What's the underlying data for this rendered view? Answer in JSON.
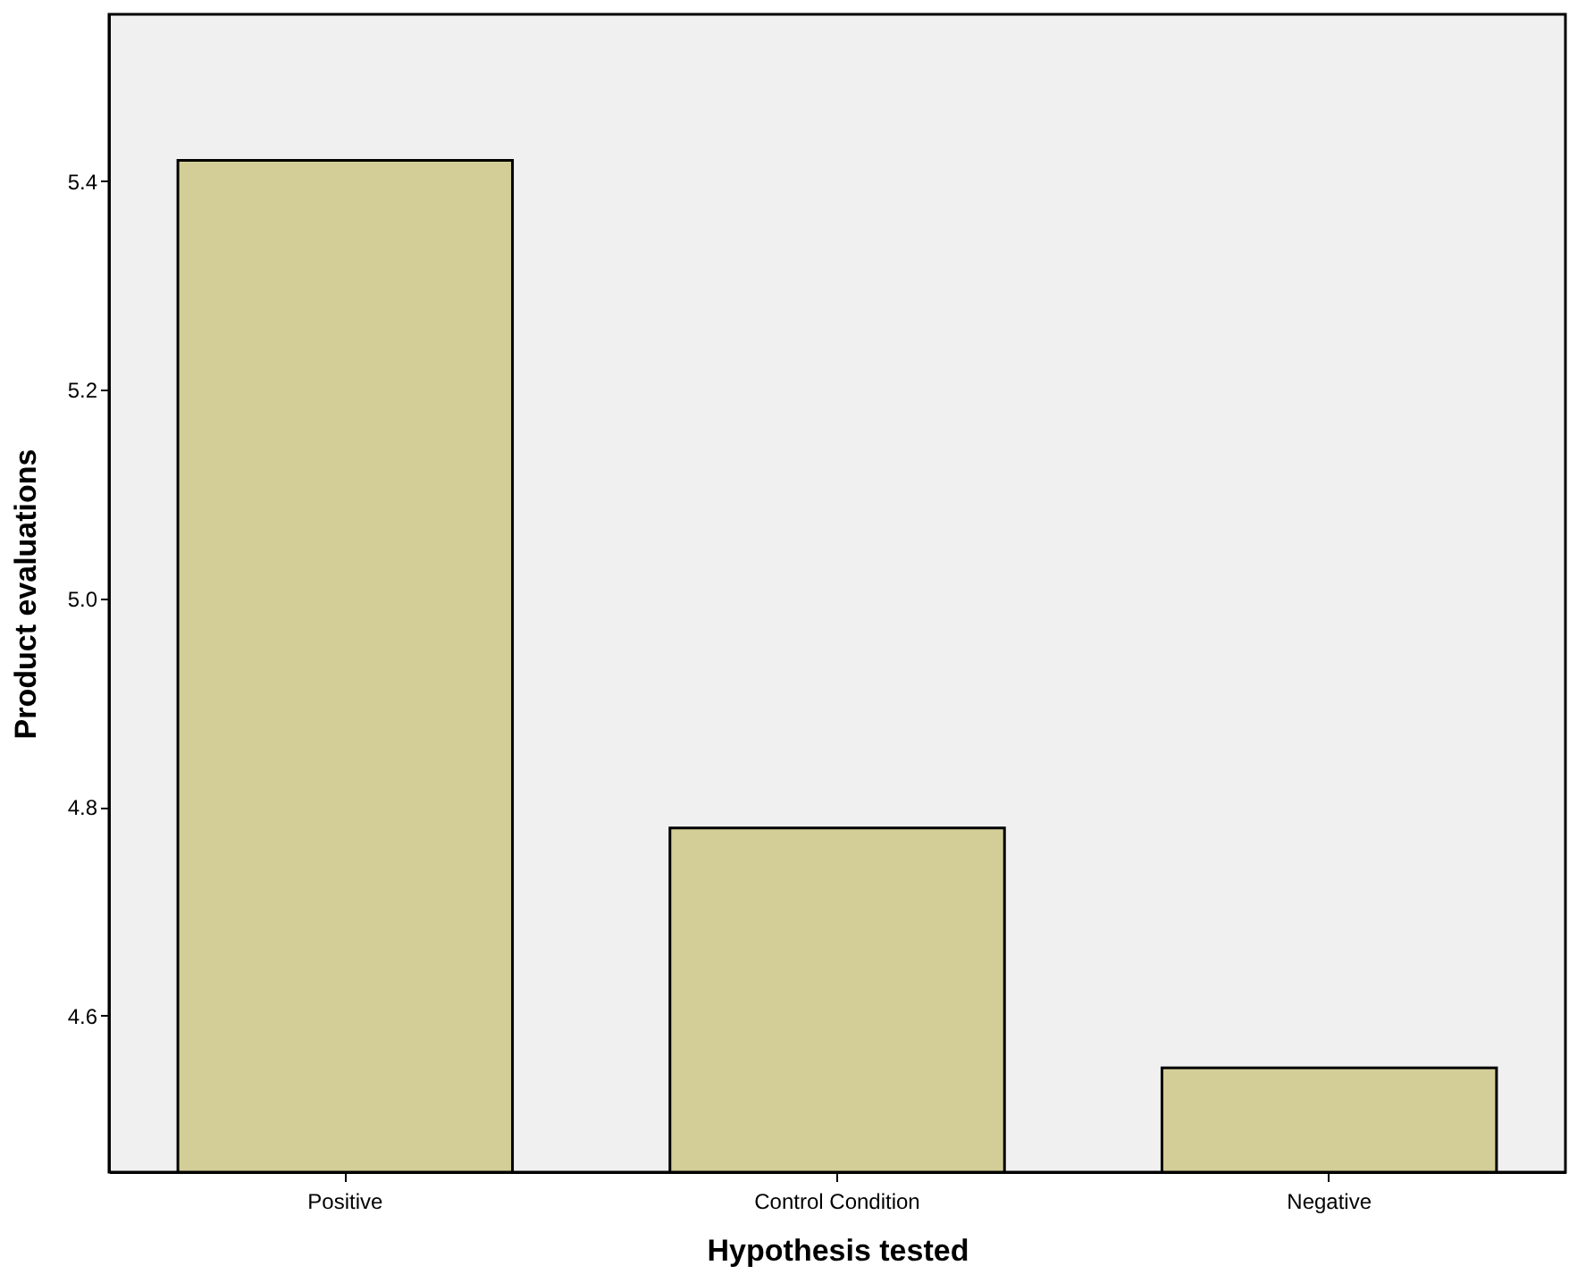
{
  "chart_data": {
    "type": "bar",
    "xlabel": "Hypothesis tested",
    "ylabel": "Product evaluations",
    "categories": [
      "Positive",
      "Control Condition",
      "Negative"
    ],
    "values": [
      5.42,
      4.78,
      4.55
    ],
    "color": "#d3ce98",
    "ylim": [
      4.45,
      5.56
    ],
    "yticks": [
      4.6,
      4.8,
      {
        "value": 5,
        "label": "5.0"
      },
      5.2,
      5.4
    ],
    "grid": false
  }
}
